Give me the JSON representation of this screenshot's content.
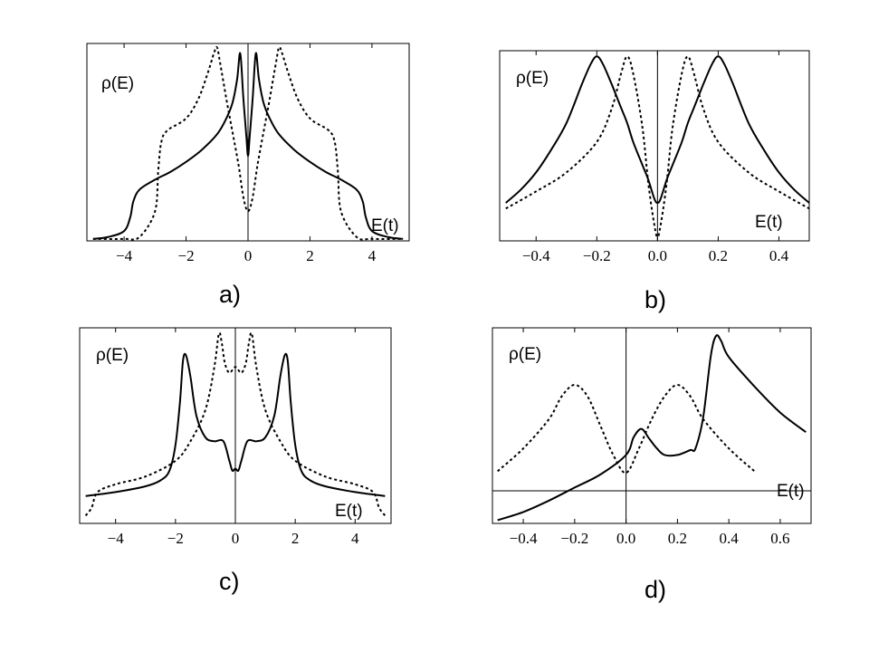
{
  "chart_data": [
    {
      "type": "line",
      "caption": "a)",
      "ylabel": "ρ(E)",
      "xlabel": "E(t)",
      "xlim": [
        -5.2,
        5.2
      ],
      "ylim": [
        0,
        1.0
      ],
      "xticks": [
        "−4",
        "−2",
        "0",
        "2",
        "4"
      ],
      "xtick_values": [
        -4,
        -2,
        0,
        2,
        4
      ],
      "zero_lines": {
        "vertical": true,
        "horizontal": false
      },
      "series": [
        {
          "style": "solid",
          "x": [
            -5.0,
            -4.5,
            -4.0,
            -3.8,
            -3.7,
            -3.5,
            -3.0,
            -2.5,
            -2.0,
            -1.5,
            -1.0,
            -0.7,
            -0.5,
            -0.35,
            -0.25,
            -0.15,
            -0.05,
            0.0,
            0.05,
            0.15,
            0.25,
            0.35,
            0.5,
            0.7,
            1.0,
            1.5,
            2.0,
            2.5,
            3.0,
            3.5,
            3.7,
            3.8,
            4.0,
            4.5,
            5.0
          ],
          "y": [
            0.01,
            0.02,
            0.05,
            0.12,
            0.2,
            0.26,
            0.31,
            0.35,
            0.4,
            0.46,
            0.54,
            0.62,
            0.7,
            0.82,
            0.95,
            0.72,
            0.52,
            0.43,
            0.52,
            0.72,
            0.95,
            0.82,
            0.7,
            0.62,
            0.54,
            0.46,
            0.4,
            0.35,
            0.31,
            0.26,
            0.2,
            0.12,
            0.05,
            0.02,
            0.01
          ]
        },
        {
          "style": "dotted",
          "x": [
            -5.0,
            -4.0,
            -3.5,
            -3.0,
            -2.9,
            -2.8,
            -2.6,
            -2.0,
            -1.6,
            -1.3,
            -1.1,
            -1.0,
            -0.9,
            -0.7,
            -0.5,
            -0.3,
            -0.15,
            0.0,
            0.15,
            0.3,
            0.5,
            0.7,
            0.9,
            1.0,
            1.1,
            1.3,
            1.6,
            2.0,
            2.6,
            2.8,
            2.9,
            3.0,
            3.5,
            4.0,
            5.0
          ],
          "y": [
            0.01,
            0.01,
            0.02,
            0.15,
            0.35,
            0.5,
            0.56,
            0.62,
            0.72,
            0.85,
            0.95,
            0.98,
            0.9,
            0.72,
            0.55,
            0.38,
            0.22,
            0.15,
            0.22,
            0.38,
            0.55,
            0.72,
            0.9,
            0.98,
            0.95,
            0.85,
            0.72,
            0.62,
            0.56,
            0.5,
            0.35,
            0.15,
            0.02,
            0.01,
            0.01
          ]
        }
      ]
    },
    {
      "type": "line",
      "caption": "b)",
      "ylabel": "ρ(E)",
      "xlabel": "E(t)",
      "xlim": [
        -0.52,
        0.5
      ],
      "ylim": [
        0,
        1.0
      ],
      "xticks": [
        "−0.4",
        "−0.2",
        "0.0",
        "0.2",
        "0.4"
      ],
      "xtick_values": [
        -0.4,
        -0.2,
        0.0,
        0.2,
        0.4
      ],
      "zero_lines": {
        "vertical": true,
        "horizontal": false
      },
      "series": [
        {
          "style": "solid",
          "x": [
            -0.5,
            -0.45,
            -0.4,
            -0.35,
            -0.3,
            -0.25,
            -0.22,
            -0.2,
            -0.18,
            -0.15,
            -0.12,
            -0.1,
            -0.08,
            -0.05,
            -0.03,
            -0.01,
            0.0,
            0.01,
            0.03,
            0.05,
            0.08,
            0.1,
            0.12,
            0.15,
            0.18,
            0.2,
            0.22,
            0.25,
            0.3,
            0.35,
            0.4,
            0.45,
            0.5
          ],
          "y": [
            0.2,
            0.27,
            0.36,
            0.48,
            0.62,
            0.82,
            0.93,
            0.97,
            0.93,
            0.82,
            0.7,
            0.62,
            0.52,
            0.4,
            0.32,
            0.22,
            0.2,
            0.22,
            0.32,
            0.4,
            0.52,
            0.62,
            0.7,
            0.82,
            0.93,
            0.97,
            0.93,
            0.82,
            0.62,
            0.48,
            0.36,
            0.27,
            0.2
          ]
        },
        {
          "style": "dotted",
          "x": [
            -0.5,
            -0.4,
            -0.3,
            -0.2,
            -0.15,
            -0.12,
            -0.1,
            -0.08,
            -0.05,
            -0.03,
            -0.01,
            0.0,
            0.01,
            0.03,
            0.05,
            0.08,
            0.1,
            0.12,
            0.15,
            0.2,
            0.3,
            0.4,
            0.5
          ],
          "y": [
            0.17,
            0.26,
            0.36,
            0.52,
            0.7,
            0.88,
            0.97,
            0.88,
            0.6,
            0.3,
            0.08,
            0.02,
            0.08,
            0.3,
            0.6,
            0.88,
            0.97,
            0.88,
            0.7,
            0.52,
            0.36,
            0.26,
            0.17
          ]
        }
      ]
    },
    {
      "type": "line",
      "caption": "c)",
      "ylabel": "ρ(E)",
      "xlabel": "E(t)",
      "xlim": [
        -5.2,
        5.2
      ],
      "ylim": [
        0,
        1.0
      ],
      "xticks": [
        "−4",
        "−2",
        "0",
        "2",
        "4"
      ],
      "xtick_values": [
        -4,
        -2,
        0,
        2,
        4
      ],
      "zero_lines": {
        "vertical": true,
        "horizontal": false
      },
      "series": [
        {
          "style": "solid",
          "x": [
            -5.0,
            -4.0,
            -3.0,
            -2.5,
            -2.2,
            -2.0,
            -1.85,
            -1.75,
            -1.65,
            -1.5,
            -1.3,
            -1.0,
            -0.7,
            -0.4,
            -0.2,
            -0.1,
            0.0,
            0.1,
            0.2,
            0.4,
            0.7,
            1.0,
            1.3,
            1.5,
            1.65,
            1.75,
            1.85,
            2.0,
            2.2,
            2.5,
            3.0,
            4.0,
            5.0
          ],
          "y": [
            0.14,
            0.16,
            0.19,
            0.22,
            0.27,
            0.4,
            0.62,
            0.83,
            0.86,
            0.75,
            0.55,
            0.44,
            0.42,
            0.42,
            0.32,
            0.27,
            0.28,
            0.27,
            0.32,
            0.42,
            0.42,
            0.44,
            0.55,
            0.75,
            0.86,
            0.83,
            0.62,
            0.4,
            0.27,
            0.22,
            0.19,
            0.16,
            0.14
          ]
        },
        {
          "style": "dotted",
          "x": [
            -5.0,
            -4.8,
            -4.6,
            -4.0,
            -3.0,
            -2.0,
            -1.5,
            -1.0,
            -0.7,
            -0.55,
            -0.45,
            -0.35,
            -0.2,
            0.0,
            0.2,
            0.35,
            0.45,
            0.55,
            0.7,
            1.0,
            1.5,
            2.0,
            3.0,
            4.0,
            4.6,
            4.8,
            5.0
          ],
          "y": [
            0.04,
            0.08,
            0.16,
            0.2,
            0.24,
            0.32,
            0.42,
            0.58,
            0.8,
            0.97,
            0.92,
            0.82,
            0.77,
            0.8,
            0.77,
            0.82,
            0.92,
            0.97,
            0.8,
            0.58,
            0.42,
            0.32,
            0.24,
            0.2,
            0.16,
            0.08,
            0.04
          ]
        }
      ]
    },
    {
      "type": "line",
      "caption": "d)",
      "ylabel": "ρ(E)",
      "xlabel": "E(t)",
      "xlim": [
        -0.52,
        0.72
      ],
      "ylim": [
        -0.2,
        1.0
      ],
      "xticks": [
        "−0.4",
        "−0.2",
        "0.0",
        "0.2",
        "0.4",
        "0.6"
      ],
      "xtick_values": [
        -0.4,
        -0.2,
        0.0,
        0.2,
        0.4,
        0.6
      ],
      "zero_lines": {
        "vertical": true,
        "horizontal": true
      },
      "series": [
        {
          "style": "solid",
          "x": [
            -0.5,
            -0.4,
            -0.3,
            -0.2,
            -0.1,
            0.0,
            0.03,
            0.06,
            0.09,
            0.12,
            0.15,
            0.2,
            0.25,
            0.27,
            0.3,
            0.33,
            0.35,
            0.37,
            0.4,
            0.5,
            0.6,
            0.7
          ],
          "y": [
            -0.18,
            -0.13,
            -0.06,
            0.02,
            0.1,
            0.22,
            0.33,
            0.38,
            0.32,
            0.26,
            0.22,
            0.22,
            0.25,
            0.26,
            0.45,
            0.83,
            0.95,
            0.92,
            0.82,
            0.64,
            0.48,
            0.36
          ]
        },
        {
          "style": "dotted",
          "x": [
            -0.5,
            -0.4,
            -0.3,
            -0.25,
            -0.2,
            -0.15,
            -0.1,
            -0.05,
            0.0,
            0.05,
            0.1,
            0.15,
            0.2,
            0.25,
            0.3,
            0.4,
            0.5
          ],
          "y": [
            0.12,
            0.26,
            0.44,
            0.58,
            0.65,
            0.58,
            0.4,
            0.22,
            0.11,
            0.26,
            0.44,
            0.58,
            0.65,
            0.58,
            0.44,
            0.26,
            0.12
          ]
        }
      ]
    }
  ]
}
